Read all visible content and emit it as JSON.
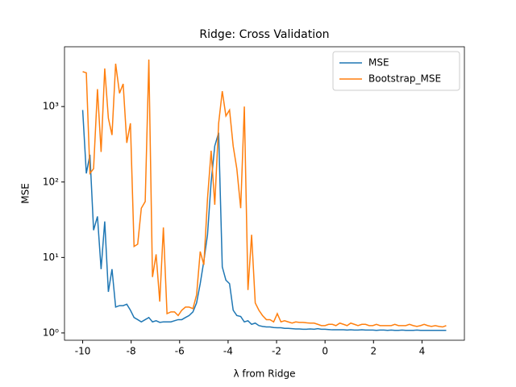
{
  "chart_data": {
    "type": "line",
    "title": "Ridge: Cross Validation",
    "x_label": "λ from Ridge",
    "y_label": "MSE",
    "x": [
      -10,
      -9.85,
      -9.7,
      -9.55,
      -9.39,
      -9.24,
      -9.09,
      -8.94,
      -8.79,
      -8.64,
      -8.48,
      -8.33,
      -8.18,
      -8.03,
      -7.88,
      -7.73,
      -7.58,
      -7.42,
      -7.27,
      -7.12,
      -6.97,
      -6.82,
      -6.67,
      -6.52,
      -6.36,
      -6.21,
      -6.06,
      -5.91,
      -5.76,
      -5.61,
      -5.45,
      -5.3,
      -5.15,
      -5.0,
      -4.85,
      -4.7,
      -4.55,
      -4.39,
      -4.24,
      -4.09,
      -3.94,
      -3.79,
      -3.64,
      -3.48,
      -3.33,
      -3.18,
      -3.03,
      -2.88,
      -2.73,
      -2.58,
      -2.42,
      -2.27,
      -2.12,
      -1.97,
      -1.82,
      -1.67,
      -1.52,
      -1.36,
      -1.21,
      -1.06,
      -0.91,
      -0.76,
      -0.61,
      -0.45,
      -0.3,
      -0.15,
      0.0,
      0.15,
      0.3,
      0.45,
      0.61,
      0.76,
      0.91,
      1.06,
      1.21,
      1.36,
      1.52,
      1.67,
      1.82,
      1.97,
      2.12,
      2.27,
      2.42,
      2.58,
      2.73,
      2.88,
      3.03,
      3.18,
      3.33,
      3.48,
      3.64,
      3.79,
      3.94,
      4.09,
      4.24,
      4.39,
      4.55,
      4.7,
      4.85,
      5.0
    ],
    "series": [
      {
        "name": "MSE",
        "color": "#1f77b4",
        "values": [
          900,
          130,
          230,
          23,
          35,
          7,
          30,
          3.5,
          7,
          2.2,
          2.3,
          2.3,
          2.4,
          2.0,
          1.6,
          1.5,
          1.4,
          1.5,
          1.6,
          1.4,
          1.45,
          1.38,
          1.4,
          1.4,
          1.4,
          1.45,
          1.5,
          1.5,
          1.6,
          1.7,
          1.9,
          2.5,
          4.5,
          9,
          20,
          100,
          300,
          450,
          7.5,
          5,
          4.5,
          2.0,
          1.7,
          1.65,
          1.4,
          1.45,
          1.3,
          1.35,
          1.25,
          1.22,
          1.2,
          1.2,
          1.18,
          1.17,
          1.17,
          1.15,
          1.15,
          1.14,
          1.13,
          1.13,
          1.12,
          1.12,
          1.13,
          1.12,
          1.14,
          1.12,
          1.12,
          1.11,
          1.1,
          1.1,
          1.1,
          1.1,
          1.09,
          1.1,
          1.09,
          1.09,
          1.1,
          1.09,
          1.09,
          1.09,
          1.08,
          1.09,
          1.09,
          1.08,
          1.09,
          1.08,
          1.08,
          1.09,
          1.08,
          1.08,
          1.08,
          1.09,
          1.08,
          1.08,
          1.08,
          1.08,
          1.08,
          1.08,
          1.08,
          1.08
        ]
      },
      {
        "name": "Bootstrap_MSE",
        "color": "#ff7f0e",
        "values": [
          2900,
          2800,
          130,
          150,
          1700,
          250,
          3200,
          700,
          420,
          3700,
          1500,
          2000,
          330,
          600,
          14,
          15,
          45,
          55,
          4200,
          5.5,
          11,
          2.6,
          25,
          1.8,
          1.9,
          1.9,
          1.7,
          2.0,
          2.2,
          2.2,
          2.1,
          3.2,
          12,
          8,
          60,
          260,
          50,
          600,
          1600,
          750,
          900,
          300,
          150,
          45,
          1000,
          3.7,
          20,
          2.5,
          2.0,
          1.7,
          1.5,
          1.5,
          1.4,
          1.8,
          1.4,
          1.45,
          1.4,
          1.35,
          1.4,
          1.38,
          1.38,
          1.36,
          1.35,
          1.35,
          1.3,
          1.25,
          1.25,
          1.3,
          1.3,
          1.25,
          1.35,
          1.3,
          1.25,
          1.35,
          1.3,
          1.25,
          1.3,
          1.3,
          1.25,
          1.25,
          1.3,
          1.25,
          1.25,
          1.25,
          1.25,
          1.3,
          1.25,
          1.25,
          1.25,
          1.3,
          1.25,
          1.22,
          1.25,
          1.3,
          1.25,
          1.22,
          1.25,
          1.22,
          1.2,
          1.25
        ]
      }
    ],
    "xlim": [
      -10.75,
      5.75
    ],
    "ylim": [
      0.8,
      6200
    ],
    "y_scale": "log",
    "xticks": [
      -10,
      -8,
      -6,
      -4,
      -2,
      0,
      2,
      4
    ],
    "yticks": [
      {
        "value": 1,
        "label": "10⁰"
      },
      {
        "value": 10,
        "label": "10¹"
      },
      {
        "value": 100,
        "label": "10²"
      },
      {
        "value": 1000,
        "label": "10³"
      }
    ],
    "legend": "upper right"
  }
}
